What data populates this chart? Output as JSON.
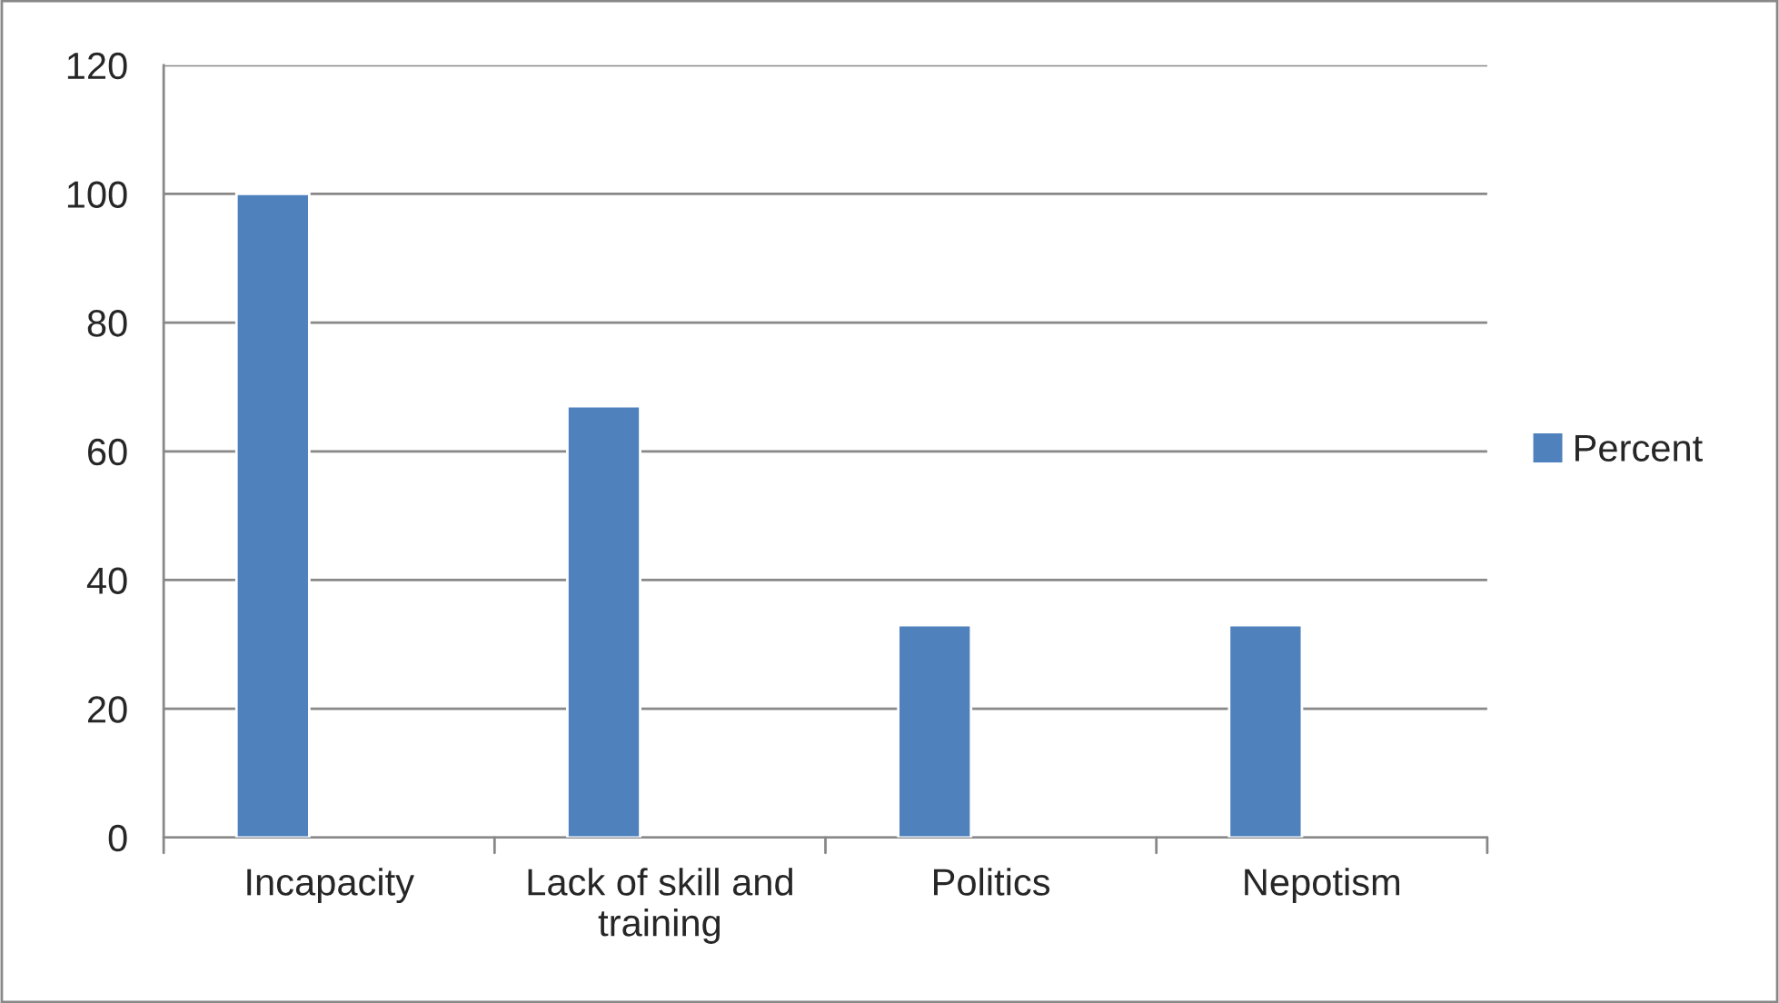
{
  "chart_data": {
    "type": "bar",
    "categories": [
      "Incapacity",
      "Lack of skill and\ntraining",
      "Politics",
      "Nepotism"
    ],
    "series": [
      {
        "name": "Percent",
        "color": "#4f81bd",
        "values": [
          100,
          67,
          33,
          33
        ]
      }
    ],
    "ylim": [
      0,
      120
    ],
    "yticks": [
      0,
      20,
      40,
      60,
      80,
      100,
      120
    ],
    "grid": "y",
    "legend": "right"
  }
}
